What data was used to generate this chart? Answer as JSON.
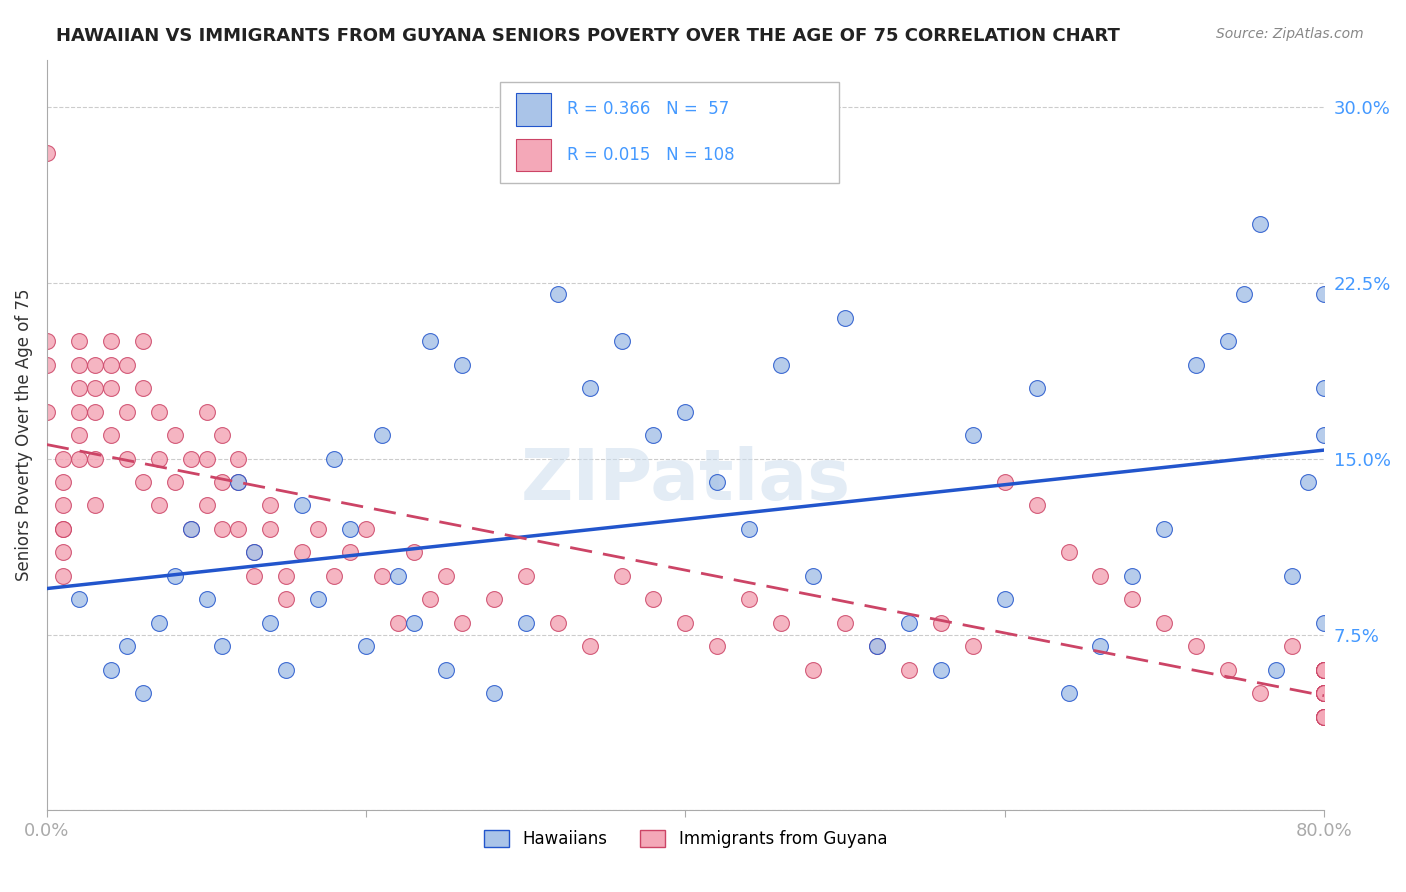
{
  "title": "HAWAIIAN VS IMMIGRANTS FROM GUYANA SENIORS POVERTY OVER THE AGE OF 75 CORRELATION CHART",
  "source": "Source: ZipAtlas.com",
  "ylabel": "Seniors Poverty Over the Age of 75",
  "xlim": [
    0.0,
    0.8
  ],
  "ylim": [
    0.0,
    0.32
  ],
  "grid_color": "#cccccc",
  "background_color": "#ffffff",
  "hawaiian_color": "#aac4e8",
  "guyana_color": "#f4a8b8",
  "hawaiian_line_color": "#2255cc",
  "guyana_line_color": "#cc4466",
  "hawaiian_R": 0.366,
  "hawaiian_N": 57,
  "guyana_R": 0.015,
  "guyana_N": 108,
  "legend_label_color": "#4499ff",
  "hawaiian_x": [
    0.02,
    0.04,
    0.05,
    0.06,
    0.07,
    0.08,
    0.09,
    0.1,
    0.11,
    0.12,
    0.13,
    0.14,
    0.15,
    0.16,
    0.17,
    0.18,
    0.19,
    0.2,
    0.21,
    0.22,
    0.23,
    0.24,
    0.25,
    0.26,
    0.28,
    0.3,
    0.32,
    0.34,
    0.36,
    0.38,
    0.4,
    0.42,
    0.44,
    0.46,
    0.48,
    0.5,
    0.52,
    0.54,
    0.56,
    0.58,
    0.6,
    0.62,
    0.64,
    0.66,
    0.68,
    0.7,
    0.72,
    0.74,
    0.75,
    0.76,
    0.77,
    0.78,
    0.79,
    0.8,
    0.8,
    0.8,
    0.8
  ],
  "hawaiian_y": [
    0.09,
    0.06,
    0.07,
    0.05,
    0.08,
    0.1,
    0.12,
    0.09,
    0.07,
    0.14,
    0.11,
    0.08,
    0.06,
    0.13,
    0.09,
    0.15,
    0.12,
    0.07,
    0.16,
    0.1,
    0.08,
    0.2,
    0.06,
    0.19,
    0.05,
    0.08,
    0.22,
    0.18,
    0.2,
    0.16,
    0.17,
    0.14,
    0.12,
    0.19,
    0.1,
    0.21,
    0.07,
    0.08,
    0.06,
    0.16,
    0.09,
    0.18,
    0.05,
    0.07,
    0.1,
    0.12,
    0.19,
    0.2,
    0.22,
    0.25,
    0.06,
    0.1,
    0.14,
    0.22,
    0.08,
    0.16,
    0.18
  ],
  "guyana_x": [
    0.0,
    0.0,
    0.0,
    0.0,
    0.01,
    0.01,
    0.01,
    0.01,
    0.01,
    0.01,
    0.01,
    0.02,
    0.02,
    0.02,
    0.02,
    0.02,
    0.02,
    0.03,
    0.03,
    0.03,
    0.03,
    0.03,
    0.04,
    0.04,
    0.04,
    0.04,
    0.05,
    0.05,
    0.05,
    0.06,
    0.06,
    0.06,
    0.07,
    0.07,
    0.07,
    0.08,
    0.08,
    0.09,
    0.09,
    0.1,
    0.1,
    0.1,
    0.11,
    0.11,
    0.11,
    0.12,
    0.12,
    0.12,
    0.13,
    0.13,
    0.14,
    0.14,
    0.15,
    0.15,
    0.16,
    0.17,
    0.18,
    0.19,
    0.2,
    0.21,
    0.22,
    0.23,
    0.24,
    0.25,
    0.26,
    0.28,
    0.3,
    0.32,
    0.34,
    0.36,
    0.38,
    0.4,
    0.42,
    0.44,
    0.46,
    0.48,
    0.5,
    0.52,
    0.54,
    0.56,
    0.58,
    0.6,
    0.62,
    0.64,
    0.66,
    0.68,
    0.7,
    0.72,
    0.74,
    0.76,
    0.78,
    0.8,
    0.8,
    0.8,
    0.8,
    0.8,
    0.8,
    0.8,
    0.8,
    0.8,
    0.8,
    0.8,
    0.8,
    0.8,
    0.8,
    0.8,
    0.8,
    0.8
  ],
  "guyana_y": [
    0.28,
    0.2,
    0.19,
    0.17,
    0.15,
    0.14,
    0.13,
    0.12,
    0.12,
    0.11,
    0.1,
    0.2,
    0.19,
    0.18,
    0.17,
    0.16,
    0.15,
    0.19,
    0.18,
    0.17,
    0.15,
    0.13,
    0.2,
    0.19,
    0.18,
    0.16,
    0.19,
    0.17,
    0.15,
    0.2,
    0.18,
    0.14,
    0.17,
    0.15,
    0.13,
    0.16,
    0.14,
    0.15,
    0.12,
    0.17,
    0.15,
    0.13,
    0.16,
    0.14,
    0.12,
    0.15,
    0.14,
    0.12,
    0.11,
    0.1,
    0.13,
    0.12,
    0.1,
    0.09,
    0.11,
    0.12,
    0.1,
    0.11,
    0.12,
    0.1,
    0.08,
    0.11,
    0.09,
    0.1,
    0.08,
    0.09,
    0.1,
    0.08,
    0.07,
    0.1,
    0.09,
    0.08,
    0.07,
    0.09,
    0.08,
    0.06,
    0.08,
    0.07,
    0.06,
    0.08,
    0.07,
    0.14,
    0.13,
    0.11,
    0.1,
    0.09,
    0.08,
    0.07,
    0.06,
    0.05,
    0.07,
    0.06,
    0.05,
    0.04,
    0.06,
    0.05,
    0.04,
    0.06,
    0.05,
    0.04,
    0.06,
    0.05,
    0.04,
    0.06,
    0.05,
    0.04,
    0.06,
    0.05
  ]
}
